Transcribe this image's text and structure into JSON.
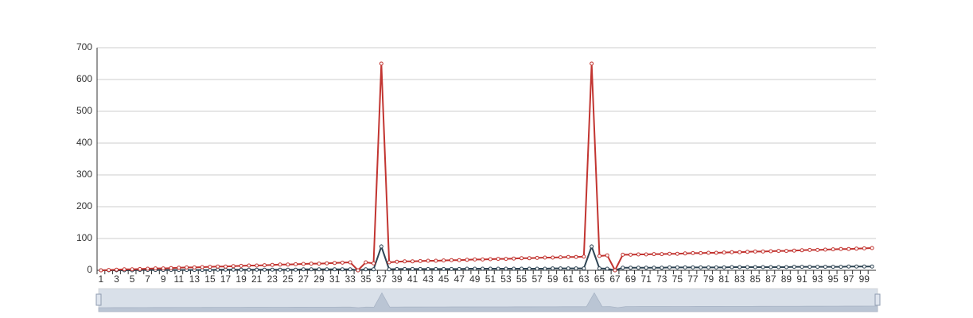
{
  "chart_data": {
    "type": "line",
    "categories": [
      1,
      null,
      3,
      null,
      5,
      null,
      7,
      null,
      9,
      null,
      11,
      null,
      13,
      null,
      15,
      null,
      17,
      null,
      19,
      null,
      21,
      null,
      23,
      null,
      25,
      null,
      27,
      null,
      29,
      null,
      31,
      null,
      33,
      null,
      35,
      null,
      37,
      null,
      39,
      null,
      41,
      null,
      43,
      null,
      45,
      null,
      47,
      null,
      49,
      null,
      51,
      null,
      53,
      null,
      55,
      null,
      57,
      null,
      59,
      null,
      61,
      null,
      63,
      null,
      65,
      null,
      67,
      null,
      69,
      null,
      71,
      null,
      73,
      null,
      75,
      null,
      77,
      null,
      79,
      null,
      81,
      null,
      83,
      null,
      85,
      null,
      87,
      null,
      89,
      null,
      91,
      null,
      93,
      null,
      95,
      null,
      97,
      null,
      99,
      null
    ],
    "series": [
      {
        "color": "#c23531",
        "values": [
          0,
          1,
          2,
          3,
          3,
          4,
          5,
          6,
          6,
          7,
          8,
          9,
          9,
          10,
          11,
          12,
          12,
          13,
          14,
          15,
          15,
          16,
          17,
          18,
          18,
          19,
          20,
          21,
          21,
          22,
          23,
          24,
          25,
          0,
          25,
          22,
          650,
          25,
          27,
          28,
          28,
          29,
          30,
          30,
          31,
          32,
          32,
          33,
          34,
          34,
          35,
          36,
          36,
          37,
          38,
          38,
          39,
          40,
          40,
          41,
          42,
          42,
          43,
          650,
          45,
          47,
          0,
          49,
          49,
          50,
          50,
          51,
          51,
          52,
          52,
          53,
          54,
          54,
          55,
          55,
          56,
          57,
          57,
          58,
          59,
          59,
          60,
          61,
          61,
          62,
          63,
          64,
          64,
          65,
          66,
          67,
          67,
          68,
          69,
          70
        ]
      },
      {
        "color": "#2f4554",
        "values": [
          0,
          0,
          0,
          0,
          0,
          1,
          1,
          1,
          1,
          1,
          1,
          1,
          1,
          1,
          1,
          2,
          2,
          2,
          2,
          2,
          2,
          2,
          2,
          2,
          2,
          2,
          3,
          3,
          3,
          3,
          3,
          3,
          3,
          0,
          3,
          3,
          75,
          3,
          4,
          4,
          4,
          4,
          4,
          4,
          4,
          4,
          4,
          5,
          5,
          5,
          5,
          5,
          5,
          5,
          5,
          5,
          5,
          5,
          6,
          6,
          6,
          6,
          6,
          75,
          6,
          5,
          0,
          8,
          8,
          8,
          8,
          8,
          8,
          9,
          9,
          9,
          9,
          9,
          9,
          9,
          9,
          10,
          10,
          10,
          10,
          10,
          10,
          10,
          10,
          11,
          11,
          11,
          11,
          11,
          11,
          11,
          12,
          12,
          12,
          12
        ]
      }
    ],
    "ylim": [
      0,
      700
    ],
    "yticks": [
      0,
      100,
      200,
      300,
      400,
      500,
      600,
      700
    ],
    "grid": true,
    "data_zoom": true
  }
}
